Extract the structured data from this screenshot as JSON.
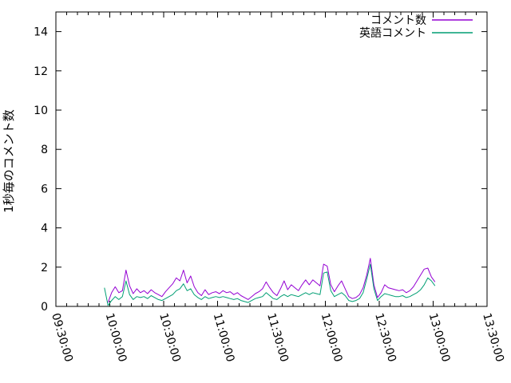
{
  "chart_data": {
    "type": "line",
    "title": "",
    "xlabel": "",
    "ylabel": "1秒毎のコメント数",
    "ylim": [
      0,
      15
    ],
    "ytick_values": [
      0,
      2,
      4,
      6,
      8,
      10,
      12,
      14
    ],
    "x_axis_unit": "minutes after 09:30:00",
    "xlim_minutes": [
      0,
      240
    ],
    "x_tick_minutes": [
      0,
      30,
      60,
      90,
      120,
      150,
      180,
      210,
      240
    ],
    "x_tick_labels": [
      "09:30:00",
      "10:00:00",
      "10:30:00",
      "11:00:00",
      "11:30:00",
      "12:00:00",
      "12:30:00",
      "13:00:00",
      "13:30:00"
    ],
    "x_minor_tick_interval_minutes": 6,
    "grid": false,
    "legend_position": "top-right-inside",
    "x_minutes": [
      27,
      29,
      31,
      33,
      35,
      37,
      39,
      41,
      43,
      45,
      47,
      49,
      51,
      53,
      55,
      57,
      59,
      61,
      63,
      65,
      67,
      69,
      71,
      73,
      75,
      77,
      79,
      81,
      83,
      85,
      87,
      89,
      91,
      93,
      95,
      97,
      99,
      101,
      103,
      105,
      107,
      109,
      111,
      113,
      115,
      117,
      119,
      121,
      123,
      125,
      127,
      129,
      131,
      133,
      135,
      137,
      139,
      141,
      143,
      145,
      147,
      149,
      151,
      153,
      155,
      157,
      159,
      161,
      163,
      165,
      167,
      169,
      171,
      173,
      175,
      177,
      179,
      181,
      183,
      185,
      187,
      189,
      191,
      193,
      195,
      197,
      199,
      201,
      203,
      205,
      207,
      209,
      211
    ],
    "series": [
      {
        "name": "コメント数",
        "color": "#9400d3",
        "values": [
          null,
          0.2,
          0.7,
          1.0,
          0.7,
          0.8,
          1.85,
          1.05,
          0.65,
          0.9,
          0.7,
          0.8,
          0.65,
          0.85,
          0.7,
          0.6,
          0.5,
          0.75,
          0.95,
          1.15,
          1.45,
          1.3,
          1.85,
          1.2,
          1.55,
          1.0,
          0.7,
          0.55,
          0.85,
          0.6,
          0.7,
          0.75,
          0.65,
          0.8,
          0.7,
          0.75,
          0.6,
          0.7,
          0.55,
          0.45,
          0.35,
          0.5,
          0.65,
          0.75,
          0.9,
          1.25,
          0.95,
          0.7,
          0.55,
          0.9,
          1.3,
          0.85,
          1.1,
          0.95,
          0.8,
          1.1,
          1.35,
          1.1,
          1.35,
          1.2,
          1.05,
          2.15,
          2.05,
          1.1,
          0.75,
          1.05,
          1.3,
          0.9,
          0.5,
          0.4,
          0.45,
          0.6,
          0.95,
          1.6,
          2.45,
          1.1,
          0.45,
          0.7,
          1.1,
          0.95,
          0.9,
          0.85,
          0.8,
          0.85,
          0.7,
          0.8,
          1.0,
          1.3,
          1.6,
          1.9,
          1.95,
          1.5,
          1.25
        ]
      },
      {
        "name": "英語コメント",
        "color": "#009e73",
        "values": [
          0.95,
          0.05,
          0.3,
          0.5,
          0.35,
          0.5,
          1.3,
          0.6,
          0.35,
          0.5,
          0.45,
          0.5,
          0.4,
          0.55,
          0.45,
          0.35,
          0.3,
          0.4,
          0.5,
          0.6,
          0.8,
          0.9,
          1.15,
          0.8,
          0.9,
          0.6,
          0.45,
          0.35,
          0.5,
          0.4,
          0.45,
          0.5,
          0.45,
          0.5,
          0.45,
          0.4,
          0.35,
          0.4,
          0.3,
          0.25,
          0.2,
          0.3,
          0.4,
          0.45,
          0.5,
          0.7,
          0.55,
          0.4,
          0.35,
          0.5,
          0.6,
          0.5,
          0.6,
          0.55,
          0.5,
          0.6,
          0.7,
          0.6,
          0.7,
          0.65,
          0.6,
          1.7,
          1.75,
          0.8,
          0.5,
          0.6,
          0.7,
          0.55,
          0.3,
          0.25,
          0.3,
          0.4,
          0.7,
          1.4,
          2.15,
          0.9,
          0.3,
          0.5,
          0.65,
          0.6,
          0.55,
          0.5,
          0.5,
          0.55,
          0.45,
          0.5,
          0.6,
          0.7,
          0.85,
          1.1,
          1.45,
          1.3,
          1.05
        ]
      }
    ]
  },
  "colors": {
    "axis": "#000000",
    "background": "#ffffff",
    "series1": "#9400d3",
    "series2": "#009e73"
  }
}
